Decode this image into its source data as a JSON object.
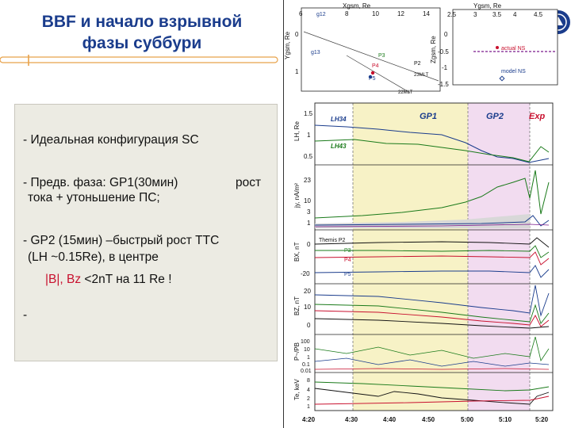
{
  "slide": {
    "title_line1": "BBF и начало взрывной",
    "title_line2": "фазы суббури",
    "bullet1": "- Идеальная конфигурация SC",
    "bullet2_a": "-  Предв.  фаза: GP1(30мин)",
    "bullet2_b": "рост",
    "bullet2_c": "тока + утоньшение ПС;",
    "bullet3_a": "- GP2 (15мин) –быстрый рост ТТС",
    "bullet3_b": "(LH ~0.15Re), в центре",
    "bullet3_c1": "|B|, Bz",
    "bullet3_c2": "<2nT  на 11 Re !",
    "bullet4": "-"
  },
  "colors": {
    "title": "#1a3c8c",
    "panel": "#ecebe3",
    "gp1": "#f7f2c6",
    "gp2": "#f2dcf0",
    "accent_red": "#c8102e"
  },
  "figure": {
    "orbit_left": {
      "xaxis_label": "Xgsm, Re",
      "yaxis_label": "Ygsm, Re",
      "xticks": [
        "6",
        "8",
        "10",
        "12",
        "14"
      ],
      "yticks": [
        "0",
        "1"
      ],
      "labels": [
        "P1",
        "P2",
        "P3",
        "P4",
        "P5",
        "g13",
        "g12",
        "22MLT",
        "23MLT"
      ]
    },
    "orbit_right": {
      "xaxis_label": "Ygsm, Re",
      "yaxis_label": "Zgsm, Re",
      "xticks": [
        "2.5",
        "3",
        "3.5",
        "4",
        "4.5"
      ],
      "yticks": [
        "0",
        "-0.5",
        "-1",
        "-1.5"
      ],
      "legend_actual": "actual NS",
      "legend_model": "model NS"
    },
    "phase_labels": {
      "gp1": "GP1",
      "gp2": "GP2",
      "exp": "Exp"
    },
    "panels": [
      {
        "ylabel": "LH, Re",
        "ticks": [
          "1.5",
          "1",
          "0.5"
        ],
        "curve_labels": [
          "LH34",
          "LH43"
        ]
      },
      {
        "ylabel": "jy, nA/m²",
        "ticks": [
          "23",
          "10",
          "3",
          "1"
        ]
      },
      {
        "ylabel": "BX, nT",
        "ticks": [
          "0",
          "-20"
        ],
        "legend": [
          "Themis P2",
          "P3",
          "P4",
          "P5"
        ]
      },
      {
        "ylabel": "BZ, nT",
        "ticks": [
          "20",
          "10",
          "0"
        ]
      },
      {
        "ylabel": "P~/PB",
        "ticks": [
          "100",
          "10",
          "1",
          "0.1",
          "0.01"
        ]
      },
      {
        "ylabel": "Te, keV",
        "ticks": [
          "8",
          "4",
          "2",
          "1"
        ]
      }
    ],
    "time_ticks": [
      "4:20",
      "4:30",
      "4:40",
      "4:50",
      "5:00",
      "5:10",
      "5:20"
    ]
  }
}
